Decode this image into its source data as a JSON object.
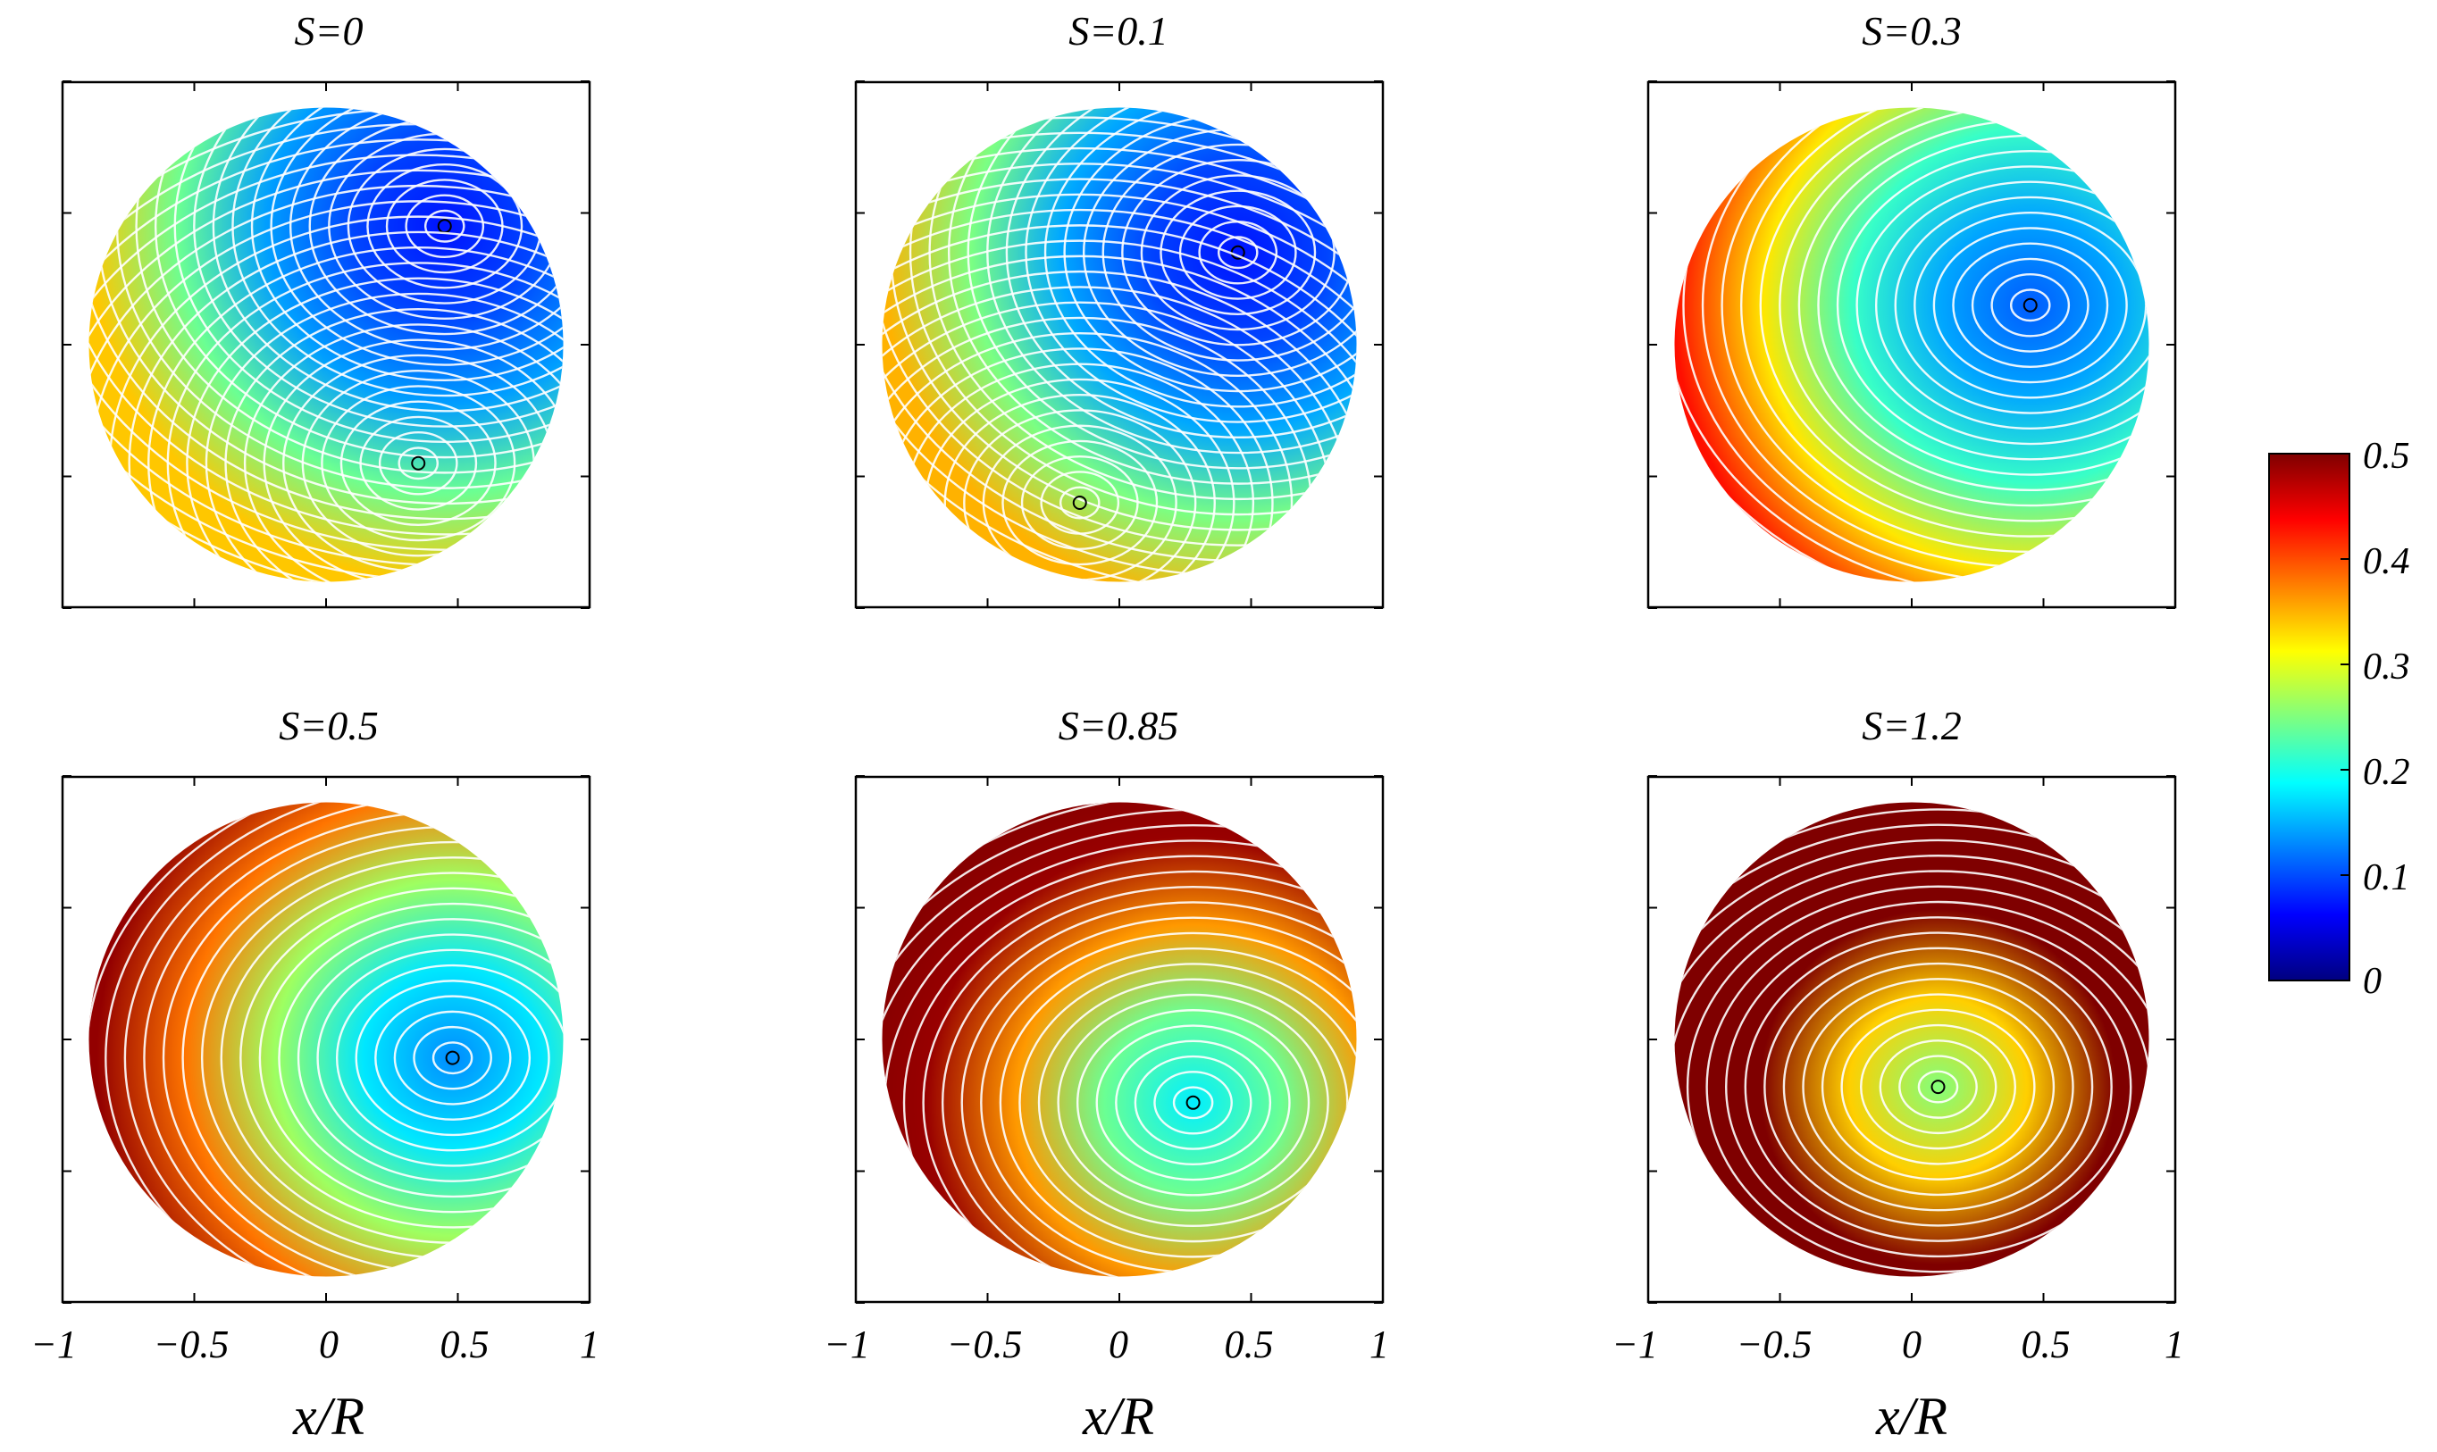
{
  "chart_data": {
    "type": "heatmap",
    "description_free": true,
    "panels": [
      {
        "title": "S=0",
        "swirl": 0,
        "vortices": [
          {
            "x": 0.45,
            "y": 0.45
          },
          {
            "x": 0.35,
            "y": -0.45
          }
        ],
        "base_level": 0.12
      },
      {
        "title": "S=0.1",
        "swirl": 0.1,
        "vortices": [
          {
            "x": 0.45,
            "y": 0.35
          },
          {
            "x": -0.15,
            "y": -0.6
          }
        ],
        "base_level": 0.12
      },
      {
        "title": "S=0.3",
        "swirl": 0.3,
        "vortices": [
          {
            "x": 0.45,
            "y": 0.15
          }
        ],
        "base_level": 0.18
      },
      {
        "title": "S=0.5",
        "swirl": 0.5,
        "vortices": [
          {
            "x": 0.48,
            "y": -0.07
          }
        ],
        "base_level": 0.22
      },
      {
        "title": "S=0.85",
        "swirl": 0.85,
        "vortices": [
          {
            "x": 0.28,
            "y": -0.24
          }
        ],
        "base_level": 0.3
      },
      {
        "title": "S=1.2",
        "swirl": 1.2,
        "vortices": [
          {
            "x": 0.1,
            "y": -0.18
          }
        ],
        "base_level": 0.42
      }
    ],
    "xlabel": "x/R",
    "x_ticks": [
      "−1",
      "−0.5",
      "0",
      "0.5",
      "1"
    ],
    "x_tick_values": [
      -1,
      -0.5,
      0,
      0.5,
      1
    ],
    "xlim": [
      -1,
      1
    ],
    "ylim": [
      -1,
      1
    ],
    "colorbar": {
      "ticks": [
        "0.5",
        "0.4",
        "0.3",
        "0.2",
        "0.1",
        "0"
      ],
      "tick_values": [
        0.5,
        0.4,
        0.3,
        0.2,
        0.1,
        0
      ],
      "range": [
        0,
        0.5
      ],
      "colormap": "jet"
    }
  },
  "colors": {
    "frame": "#000000",
    "streamline": "#ffffff",
    "jet": [
      "#00007f",
      "#0000ff",
      "#007fff",
      "#00ffff",
      "#7fff7f",
      "#ffff00",
      "#ff7f00",
      "#ff0000",
      "#7f0000"
    ]
  }
}
